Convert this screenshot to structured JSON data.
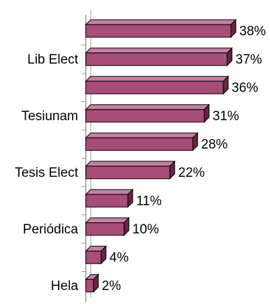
{
  "chart_data": {
    "type": "bar",
    "orientation": "horizontal",
    "style": "3d",
    "categories": [
      "",
      "Lib Elect",
      "",
      "Tesiunam",
      "",
      "Tesis Elect",
      "",
      "Periódica",
      "",
      "Hela"
    ],
    "values": [
      38,
      37,
      36,
      31,
      28,
      22,
      11,
      10,
      4,
      2
    ],
    "data_labels": [
      "38%",
      "37%",
      "36%",
      "31%",
      "28%",
      "22%",
      "11%",
      "10%",
      "4%",
      "2%"
    ],
    "title": "",
    "xlabel": "",
    "ylabel": "",
    "xlim": [
      0,
      40
    ],
    "grid": false,
    "legend": "none",
    "colors": {
      "bar_front": "#A64D79",
      "bar_top": "#C77FA3",
      "bar_side": "#6B2249",
      "bar_outline": "#000000",
      "axis": "#9A9A9A"
    }
  }
}
